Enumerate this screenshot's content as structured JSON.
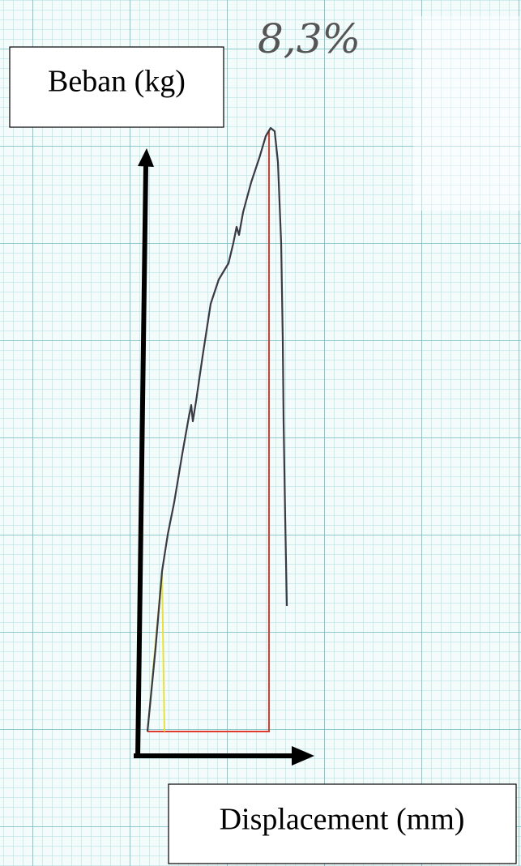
{
  "labels": {
    "y_axis": "Beban (kg)",
    "x_axis": "Displacement (mm)",
    "annotation": "8,3%"
  }
}
